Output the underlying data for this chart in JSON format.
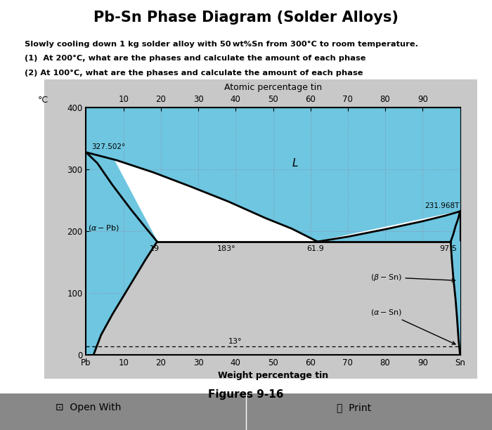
{
  "title": "Pb-Sn Phase Diagram (Solder Alloys)",
  "subtitle_lines": [
    "Slowly cooling down 1 kg solder alloy with 50 wt%Sn from 300°C to room temperature.",
    "(1)  At 200°C, what are the phases and calculate the amount of each phase",
    "(2) At 100°C, what are the phases and calculate the amount of each phase"
  ],
  "figure_caption": "Figures 9-16",
  "fig_bg": "#ffffff",
  "panel_bg": "#c8c8c8",
  "plot_bg": "#c8c8c8",
  "liquid_color": "#6ec6e0",
  "alpha_pb_color": "#6ec6e0",
  "beta_sn_color": "#6ec6e0",
  "two_phase_color": "#ffffff",
  "xlabel": "Weight percentage tin",
  "ylabel": "°C",
  "atomic_label": "Atomic percentage tin",
  "xmin": 0,
  "xmax": 100,
  "ymin": 0,
  "ymax": 400,
  "xlabels": [
    "Pb",
    "10",
    "20",
    "30",
    "40",
    "50",
    "60",
    "70",
    "80",
    "90",
    "Sn"
  ],
  "atomic_ticks": [
    10,
    20,
    30,
    40,
    50,
    60,
    70,
    80,
    90
  ],
  "yticks": [
    0,
    100,
    200,
    300,
    400
  ],
  "eutectic_temp": 183,
  "eutectic_comp": 61.9,
  "pb_melt": 327.502,
  "sn_melt": 231.9688,
  "grid_color": "#9090b0",
  "lw": 2.0
}
